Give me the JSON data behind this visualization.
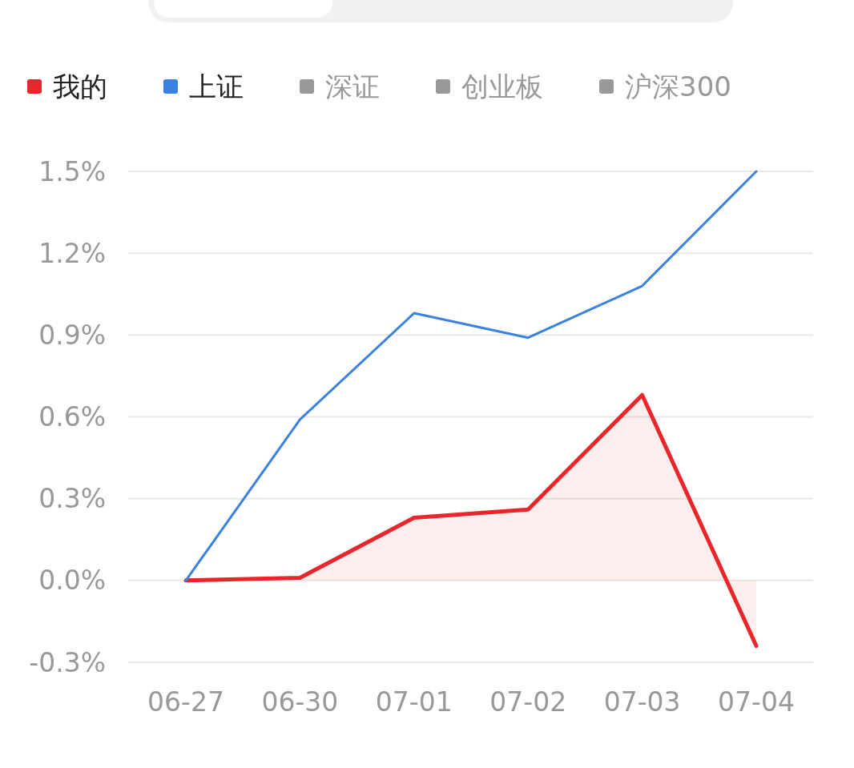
{
  "chart_data": {
    "type": "line",
    "categories": [
      "06-27",
      "06-30",
      "07-01",
      "07-02",
      "07-03",
      "07-04"
    ],
    "series": [
      {
        "name": "我的",
        "color": "#e8262b",
        "type": "area",
        "values": [
          0,
          0.01,
          0.23,
          0.26,
          0.68,
          -0.24
        ]
      },
      {
        "name": "上证",
        "color": "#3b82e0",
        "values": [
          0,
          0.59,
          0.98,
          0.89,
          1.08,
          1.5
        ]
      },
      {
        "name": "深证",
        "color": "#999999",
        "values": [
          null,
          null,
          null,
          null,
          null,
          null
        ]
      },
      {
        "name": "创业板",
        "color": "#999999",
        "values": [
          null,
          null,
          null,
          null,
          null,
          null
        ]
      },
      {
        "name": "沪深300",
        "color": "#999999",
        "values": [
          null,
          null,
          null,
          null,
          null,
          null
        ]
      }
    ],
    "ylim": [
      -0.3,
      1.5
    ],
    "yticks": [
      {
        "value": -0.3,
        "label": "-0.3%"
      },
      {
        "value": 0,
        "label": "0.0%"
      },
      {
        "value": 0.3,
        "label": "0.3%"
      },
      {
        "value": 0.6,
        "label": "0.6%"
      },
      {
        "value": 0.9,
        "label": "0.9%"
      },
      {
        "value": 1.2,
        "label": "1.2%"
      },
      {
        "value": 1.5,
        "label": "1.5%"
      }
    ],
    "grid": "y",
    "legend": "top",
    "marker": "none",
    "line_style": "solid"
  }
}
